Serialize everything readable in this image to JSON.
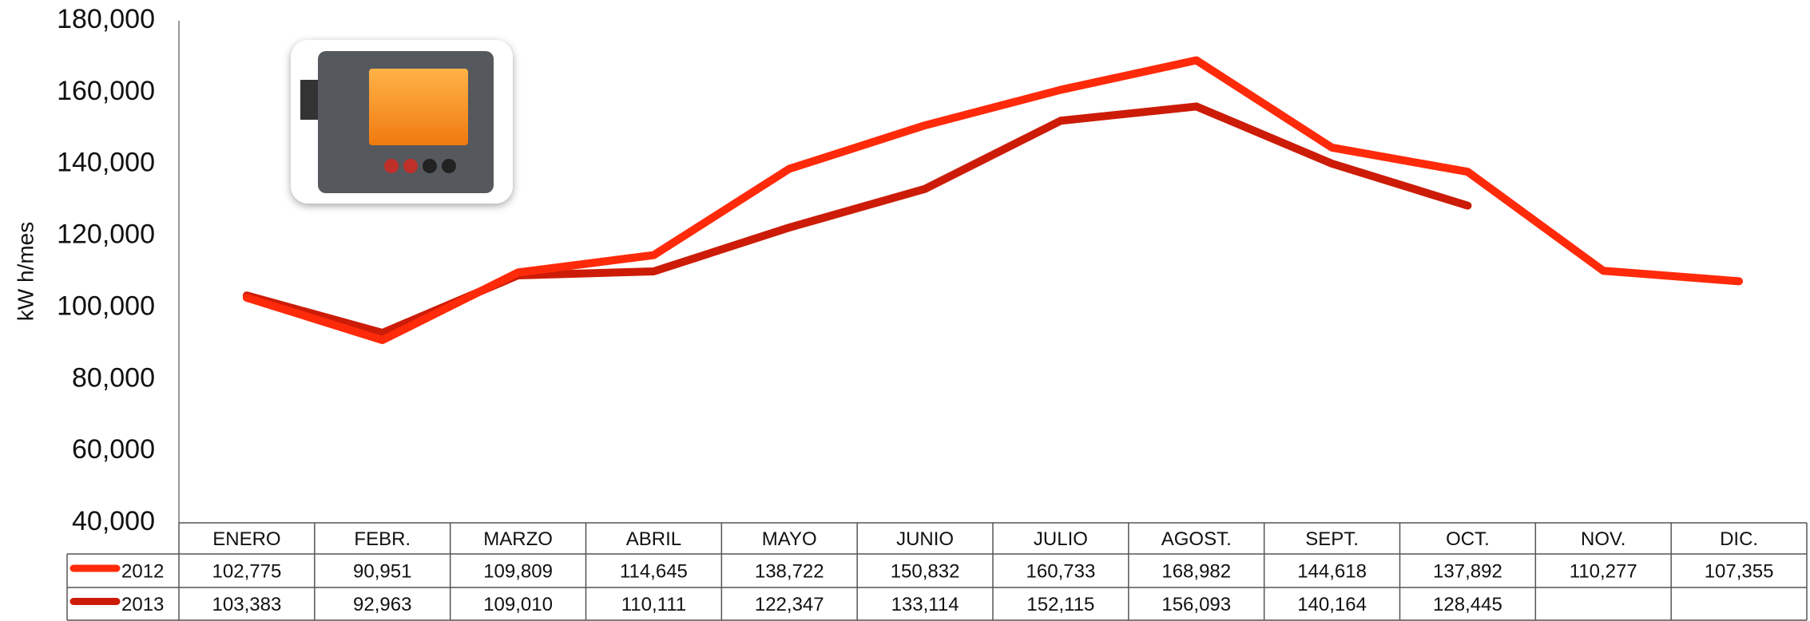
{
  "chart_data": {
    "type": "line",
    "y_label": "kW h/mes",
    "categories": [
      "ENERO",
      "FEBR.",
      "MARZO",
      "ABRIL",
      "MAYO",
      "JUNIO",
      "JULIO",
      "AGOST.",
      "SEPT.",
      "OCT.",
      "NOV.",
      "DIC."
    ],
    "series": [
      {
        "name": "2012",
        "color": "#ff2a0a",
        "values": [
          102775,
          90951,
          109809,
          114645,
          138722,
          150832,
          160733,
          168982,
          144618,
          137892,
          110277,
          107355
        ],
        "value_labels": [
          "102,775",
          "90,951",
          "109,809",
          "114,645",
          "138,722",
          "150,832",
          "160,733",
          "168,982",
          "144,618",
          "137,892",
          "110,277",
          "107,355"
        ]
      },
      {
        "name": "2013",
        "color": "#cc1c08",
        "values": [
          103383,
          92963,
          109010,
          110111,
          122347,
          133114,
          152115,
          156093,
          140164,
          128445,
          null,
          null
        ],
        "value_labels": [
          "103,383",
          "92,963",
          "109,010",
          "110,111",
          "122,347",
          "133,114",
          "152,115",
          "156,093",
          "140,164",
          "128,445",
          null,
          null
        ]
      }
    ],
    "ylim": [
      40000,
      180000
    ],
    "yticks": [
      {
        "value": 40000,
        "label": "40,000"
      },
      {
        "value": 60000,
        "label": "60,000"
      },
      {
        "value": 80000,
        "label": "80,000"
      },
      {
        "value": 100000,
        "label": "100,000"
      },
      {
        "value": 120000,
        "label": "120,000"
      },
      {
        "value": 140000,
        "label": "140,000"
      },
      {
        "value": 160000,
        "label": "160,000"
      },
      {
        "value": 180000,
        "label": "180,000"
      }
    ],
    "grid": false
  }
}
